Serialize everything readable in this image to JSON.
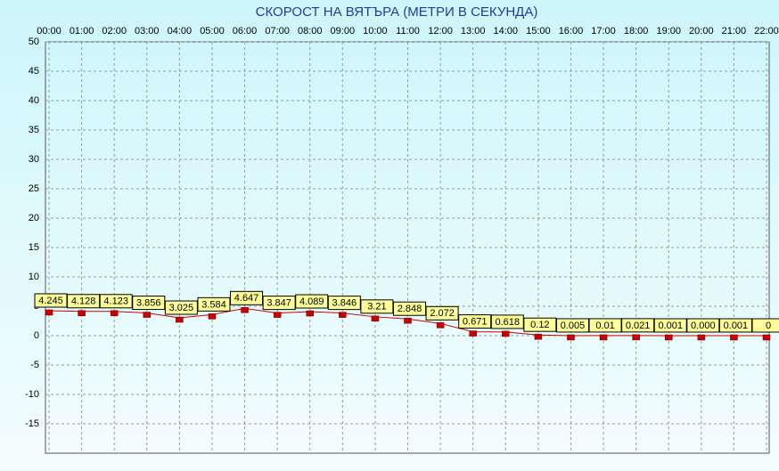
{
  "chart_data": {
    "type": "line",
    "title": "СКОРОСТ НА ВЯТЪРА (МЕТРИ В СЕКУНДА)",
    "categories": [
      "00:00",
      "01:00",
      "02:00",
      "03:00",
      "04:00",
      "05:00",
      "06:00",
      "07:00",
      "08:00",
      "09:00",
      "10:00",
      "11:00",
      "12:00",
      "13:00",
      "14:00",
      "15:00",
      "16:00",
      "17:00",
      "18:00",
      "19:00",
      "20:00",
      "21:00",
      "22:00"
    ],
    "values": [
      4.245,
      4.128,
      4.123,
      3.856,
      3.025,
      3.584,
      4.647,
      3.847,
      4.089,
      3.846,
      3.21,
      2.848,
      2.072,
      0.671,
      0.618,
      0.12,
      0.005,
      0.01,
      0.021,
      0.001,
      0,
      0.001,
      0
    ],
    "value_labels": [
      "4.245",
      "4.128",
      "4.123",
      "3.856",
      "3.025",
      "3.584",
      "4.647",
      "3.847",
      "4.089",
      "3.846",
      "3.21",
      "2.848",
      "2.072",
      "0.671",
      "0.618",
      "0.12",
      "0.005",
      "0.01",
      "0.021",
      "0.001",
      "0.000",
      "0.001",
      "0"
    ],
    "color": "#cc0000",
    "ylim": [
      -20,
      50
    ],
    "yticks": [
      -15,
      -10,
      -5,
      0,
      5,
      10,
      15,
      20,
      25,
      30,
      35,
      40,
      45,
      50
    ],
    "grid": true
  }
}
